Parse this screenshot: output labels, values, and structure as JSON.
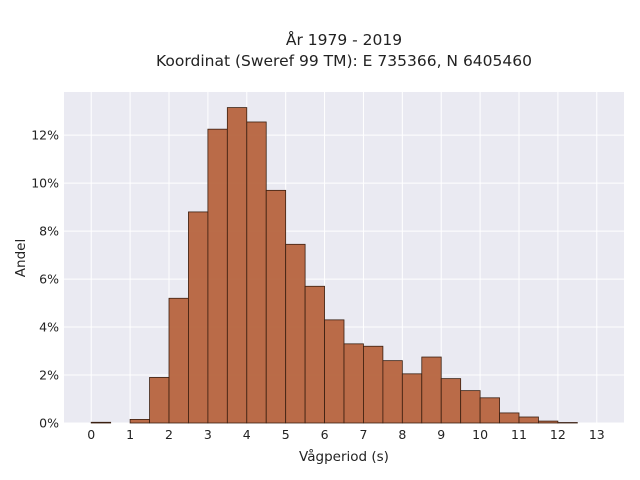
{
  "chart_data": {
    "type": "bar",
    "title_line1": "År 1979 - 2019",
    "title_line2": "Koordinat (Sweref 99 TM): E 735366, N 6405460",
    "xlabel": "Vågperiod (s)",
    "ylabel": "Andel",
    "xlim": [
      -0.7,
      13.7
    ],
    "ylim": [
      0,
      13.8
    ],
    "xticks": [
      0,
      1,
      2,
      3,
      4,
      5,
      6,
      7,
      8,
      9,
      10,
      11,
      12,
      13
    ],
    "xtick_labels": [
      "0",
      "1",
      "2",
      "3",
      "4",
      "5",
      "6",
      "7",
      "8",
      "9",
      "10",
      "11",
      "12",
      "13"
    ],
    "yticks": [
      0,
      2,
      4,
      6,
      8,
      10,
      12
    ],
    "ytick_labels": [
      "0%",
      "2%",
      "4%",
      "6%",
      "8%",
      "10%",
      "12%"
    ],
    "bin_width": 0.5,
    "bins": [
      {
        "start": 0.0,
        "value": 0.03
      },
      {
        "start": 0.5,
        "value": 0.0
      },
      {
        "start": 1.0,
        "value": 0.15
      },
      {
        "start": 1.5,
        "value": 1.9
      },
      {
        "start": 2.0,
        "value": 5.2
      },
      {
        "start": 2.5,
        "value": 8.8
      },
      {
        "start": 3.0,
        "value": 12.25
      },
      {
        "start": 3.5,
        "value": 13.15
      },
      {
        "start": 4.0,
        "value": 12.55
      },
      {
        "start": 4.5,
        "value": 9.7
      },
      {
        "start": 5.0,
        "value": 7.45
      },
      {
        "start": 5.5,
        "value": 5.7
      },
      {
        "start": 6.0,
        "value": 4.3
      },
      {
        "start": 6.5,
        "value": 3.3
      },
      {
        "start": 7.0,
        "value": 3.2
      },
      {
        "start": 7.5,
        "value": 2.6
      },
      {
        "start": 8.0,
        "value": 2.05
      },
      {
        "start": 8.5,
        "value": 2.75
      },
      {
        "start": 9.0,
        "value": 1.85
      },
      {
        "start": 9.5,
        "value": 1.35
      },
      {
        "start": 10.0,
        "value": 1.05
      },
      {
        "start": 10.5,
        "value": 0.42
      },
      {
        "start": 11.0,
        "value": 0.25
      },
      {
        "start": 11.5,
        "value": 0.08
      },
      {
        "start": 12.0,
        "value": 0.02
      }
    ],
    "grid": true,
    "colors": {
      "bar_fill": "#b5603a",
      "bar_edge": "#3a1f10",
      "plot_background": "#eaeaf2",
      "grid": "#ffffff"
    }
  }
}
